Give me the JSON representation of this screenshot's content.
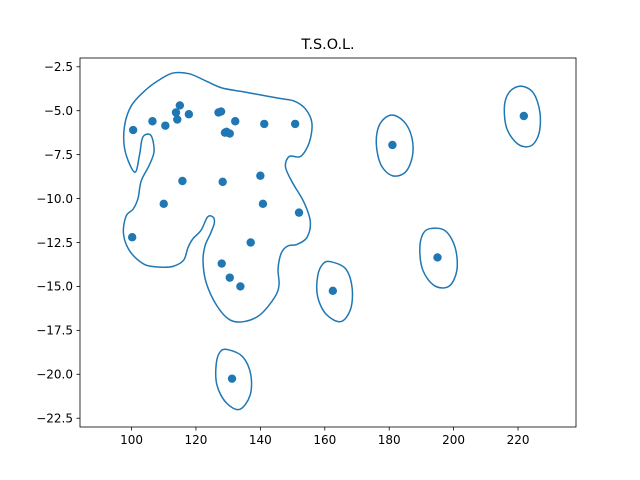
{
  "chart_data": {
    "type": "scatter",
    "title": "T.S.O.L.",
    "xlabel": "",
    "ylabel": "",
    "xlim": [
      84,
      238
    ],
    "ylim": [
      -23,
      -2
    ],
    "xticks": [
      100,
      120,
      140,
      160,
      180,
      200,
      220
    ],
    "yticks": [
      -2.5,
      -5.0,
      -7.5,
      -10.0,
      -12.5,
      -15.0,
      -17.5,
      -20.0,
      -22.5
    ],
    "xtick_labels": [
      "100",
      "120",
      "140",
      "160",
      "180",
      "200",
      "220"
    ],
    "ytick_labels": [
      "−2.5",
      "−5.0",
      "−7.5",
      "−10.0",
      "−12.5",
      "−15.0",
      "−17.5",
      "−20.0",
      "−22.5"
    ],
    "grid": false,
    "color": "#1f77b4",
    "points": [
      {
        "x": 100.5,
        "y": -6.1
      },
      {
        "x": 106.5,
        "y": -5.6
      },
      {
        "x": 110.5,
        "y": -5.85
      },
      {
        "x": 113.8,
        "y": -5.1
      },
      {
        "x": 114.2,
        "y": -5.5
      },
      {
        "x": 115.0,
        "y": -4.7
      },
      {
        "x": 117.8,
        "y": -5.2
      },
      {
        "x": 127.0,
        "y": -5.1
      },
      {
        "x": 127.8,
        "y": -5.05
      },
      {
        "x": 129.0,
        "y": -6.25
      },
      {
        "x": 129.5,
        "y": -6.2
      },
      {
        "x": 130.5,
        "y": -6.3
      },
      {
        "x": 132.2,
        "y": -5.6
      },
      {
        "x": 141.2,
        "y": -5.75
      },
      {
        "x": 150.8,
        "y": -5.75
      },
      {
        "x": 115.8,
        "y": -9.0
      },
      {
        "x": 128.3,
        "y": -9.05
      },
      {
        "x": 140.0,
        "y": -8.7
      },
      {
        "x": 110.0,
        "y": -10.3
      },
      {
        "x": 140.8,
        "y": -10.3
      },
      {
        "x": 152.0,
        "y": -10.8
      },
      {
        "x": 100.2,
        "y": -12.2
      },
      {
        "x": 137.0,
        "y": -12.5
      },
      {
        "x": 128.0,
        "y": -13.7
      },
      {
        "x": 130.5,
        "y": -14.5
      },
      {
        "x": 133.8,
        "y": -15.0
      },
      {
        "x": 162.5,
        "y": -15.25
      },
      {
        "x": 181.0,
        "y": -6.95
      },
      {
        "x": 221.8,
        "y": -5.3
      },
      {
        "x": 195.0,
        "y": -13.35
      },
      {
        "x": 131.2,
        "y": -20.25
      }
    ],
    "contours": [
      {
        "name": "main-cluster",
        "points": [
          [
            101,
            -8.5
          ],
          [
            98,
            -7.3
          ],
          [
            97.8,
            -5.9
          ],
          [
            100,
            -4.7
          ],
          [
            104.5,
            -3.8
          ],
          [
            109,
            -3.2
          ],
          [
            113,
            -2.85
          ],
          [
            118,
            -2.9
          ],
          [
            123,
            -3.3
          ],
          [
            128,
            -3.7
          ],
          [
            134,
            -3.9
          ],
          [
            140,
            -4.1
          ],
          [
            146,
            -4.3
          ],
          [
            150.5,
            -4.45
          ],
          [
            154,
            -4.9
          ],
          [
            156,
            -5.7
          ],
          [
            155.2,
            -6.8
          ],
          [
            152.5,
            -7.6
          ],
          [
            149,
            -7.6
          ],
          [
            147.8,
            -8.2
          ],
          [
            150,
            -9.1
          ],
          [
            153.5,
            -10.2
          ],
          [
            155.5,
            -11.3
          ],
          [
            154.5,
            -12.2
          ],
          [
            151.5,
            -12.6
          ],
          [
            148.5,
            -12.7
          ],
          [
            146.5,
            -13.1
          ],
          [
            145.5,
            -14.0
          ],
          [
            145.8,
            -14.9
          ],
          [
            144.5,
            -15.6
          ],
          [
            140,
            -16.6
          ],
          [
            135,
            -17.0
          ],
          [
            130.5,
            -16.9
          ],
          [
            126.5,
            -16.1
          ],
          [
            123.2,
            -14.8
          ],
          [
            122.2,
            -13.6
          ],
          [
            122.8,
            -12.7
          ],
          [
            124.5,
            -12.0
          ],
          [
            125.7,
            -11.4
          ],
          [
            125.3,
            -11.05
          ],
          [
            123.6,
            -11.05
          ],
          [
            121.6,
            -11.8
          ],
          [
            119,
            -12.3
          ],
          [
            117.5,
            -12.8
          ],
          [
            116.2,
            -13.5
          ],
          [
            113,
            -13.85
          ],
          [
            109,
            -13.9
          ],
          [
            104,
            -13.75
          ],
          [
            99.5,
            -13.0
          ],
          [
            97.5,
            -12.0
          ],
          [
            98.3,
            -11.0
          ],
          [
            100.5,
            -10.6
          ],
          [
            102,
            -10.0
          ],
          [
            103,
            -9.0
          ],
          [
            105.5,
            -8.1
          ],
          [
            107,
            -7.3
          ],
          [
            106,
            -6.4
          ],
          [
            103.5,
            -6.5
          ],
          [
            102.5,
            -7.5
          ]
        ]
      },
      {
        "name": "cluster-180",
        "points": [
          [
            180.5,
            -5.25
          ],
          [
            184.5,
            -5.6
          ],
          [
            187,
            -6.5
          ],
          [
            187.2,
            -7.6
          ],
          [
            185,
            -8.5
          ],
          [
            181,
            -8.7
          ],
          [
            177.5,
            -8.1
          ],
          [
            176,
            -6.9
          ],
          [
            177,
            -5.8
          ]
        ]
      },
      {
        "name": "cluster-221",
        "points": [
          [
            221,
            -3.6
          ],
          [
            224.8,
            -4.0
          ],
          [
            226.8,
            -5.1
          ],
          [
            226.5,
            -6.3
          ],
          [
            224,
            -7.0
          ],
          [
            220,
            -6.9
          ],
          [
            216.5,
            -6.0
          ],
          [
            215.8,
            -4.7
          ],
          [
            217.5,
            -3.9
          ]
        ]
      },
      {
        "name": "cluster-195",
        "points": [
          [
            193,
            -11.7
          ],
          [
            197.5,
            -11.85
          ],
          [
            200.5,
            -12.8
          ],
          [
            201,
            -14.1
          ],
          [
            198.5,
            -15.0
          ],
          [
            194,
            -14.95
          ],
          [
            190.5,
            -14.1
          ],
          [
            189.5,
            -12.9
          ],
          [
            190.5,
            -12.0
          ]
        ]
      },
      {
        "name": "cluster-162",
        "points": [
          [
            162,
            -13.6
          ],
          [
            166.5,
            -14.0
          ],
          [
            168.5,
            -15.1
          ],
          [
            168,
            -16.3
          ],
          [
            165,
            -17.0
          ],
          [
            160.5,
            -16.6
          ],
          [
            157.8,
            -15.6
          ],
          [
            157.8,
            -14.4
          ],
          [
            159.5,
            -13.7
          ]
        ]
      },
      {
        "name": "cluster-131",
        "points": [
          [
            130,
            -18.6
          ],
          [
            134.5,
            -19.0
          ],
          [
            137,
            -20.0
          ],
          [
            136.8,
            -21.2
          ],
          [
            133.5,
            -22.0
          ],
          [
            129.3,
            -21.6
          ],
          [
            126.5,
            -20.6
          ],
          [
            126.3,
            -19.4
          ],
          [
            127.6,
            -18.7
          ]
        ]
      }
    ]
  }
}
